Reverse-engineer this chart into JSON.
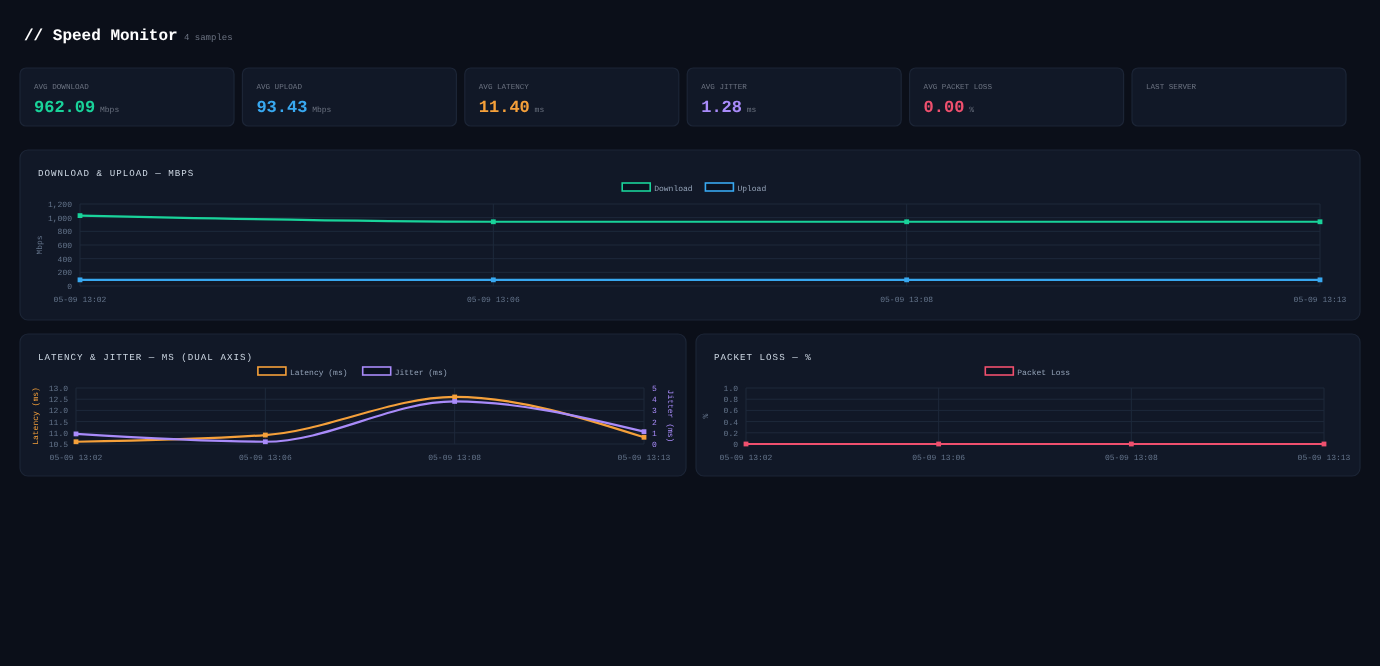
{
  "chart_data": [
    {
      "type": "other",
      "title": "// Speed Monitor",
      "subtitle": "4 samples",
      "annotations": [
        "AVG DOWNLOAD",
        "962.09 Mbps",
        "AVG UPLOAD",
        "93.43 Mbps",
        "AVG LATENCY",
        "11.40 ms",
        "AVG JITTER",
        "1.28 ms",
        "AVG PACKET LOSS",
        "0.00 %",
        "LAST SERVER"
      ],
      "colors": [
        "#19d39a",
        "#38a8f0",
        "#f5a03a",
        "#a98bfa",
        "#f0506e"
      ]
    },
    {
      "type": "line",
      "title": "DOWNLOAD & UPLOAD — MBPS",
      "ylabel": "Mbps",
      "categories": [
        "05-09 13:02",
        "05-09 13:06",
        "05-09 13:08",
        "05-09 13:13"
      ],
      "ylim": [
        0,
        1200
      ],
      "yticks": [
        0,
        200,
        400,
        600,
        800,
        {
          "value": 1000,
          "label": "1,000"
        },
        {
          "value": 1200,
          "label": "1,200"
        }
      ],
      "grid": true,
      "legend": "top",
      "marker": "square",
      "series": [
        {
          "name": "Download",
          "color": "#19d39a",
          "values": [
            1030,
            940,
            940,
            940
          ]
        },
        {
          "name": "Upload",
          "color": "#38a8f0",
          "values": [
            90,
            90,
            90,
            90
          ]
        }
      ]
    },
    {
      "type": "line",
      "title": "LATENCY & JITTER — MS (DUAL AXIS)",
      "ylabel": "Latency (ms)",
      "y2label": "Jitter (ms)",
      "categories": [
        "05-09 13:02",
        "05-09 13:06",
        "05-09 13:08",
        "05-09 13:13"
      ],
      "ylim": [
        10.5,
        13
      ],
      "yticks": [
        10.5,
        {
          "value": 11,
          "label": "11.0"
        },
        11.5,
        {
          "value": 12,
          "label": "12.0"
        },
        12.5,
        {
          "value": 13,
          "label": "13.0"
        }
      ],
      "y2lim": [
        0,
        5
      ],
      "y2ticks": [
        0,
        1,
        2,
        3,
        4,
        5
      ],
      "grid": true,
      "legend": "top",
      "marker": "square",
      "series": [
        {
          "name": "Latency (ms)",
          "color": "#f5a03a",
          "values": [
            10.6,
            10.9,
            12.6,
            10.8
          ]
        },
        {
          "name": "Jitter (ms)",
          "color": "#a98bfa",
          "values": [
            0.9,
            0.2,
            3.8,
            1.1
          ],
          "axis": "y2"
        }
      ]
    },
    {
      "type": "line",
      "title": "PACKET LOSS — %",
      "ylabel": "%",
      "categories": [
        "05-09 13:02",
        "05-09 13:06",
        "05-09 13:08",
        "05-09 13:13"
      ],
      "ylim": [
        0,
        1
      ],
      "yticks": [
        0,
        0.2,
        0.4,
        0.6,
        0.8,
        {
          "value": 1,
          "label": "1.0"
        }
      ],
      "grid": true,
      "legend": "top",
      "marker": "square",
      "series": [
        {
          "name": "Packet Loss",
          "color": "#f0506e",
          "values": [
            0,
            0,
            0,
            0
          ]
        }
      ]
    }
  ]
}
